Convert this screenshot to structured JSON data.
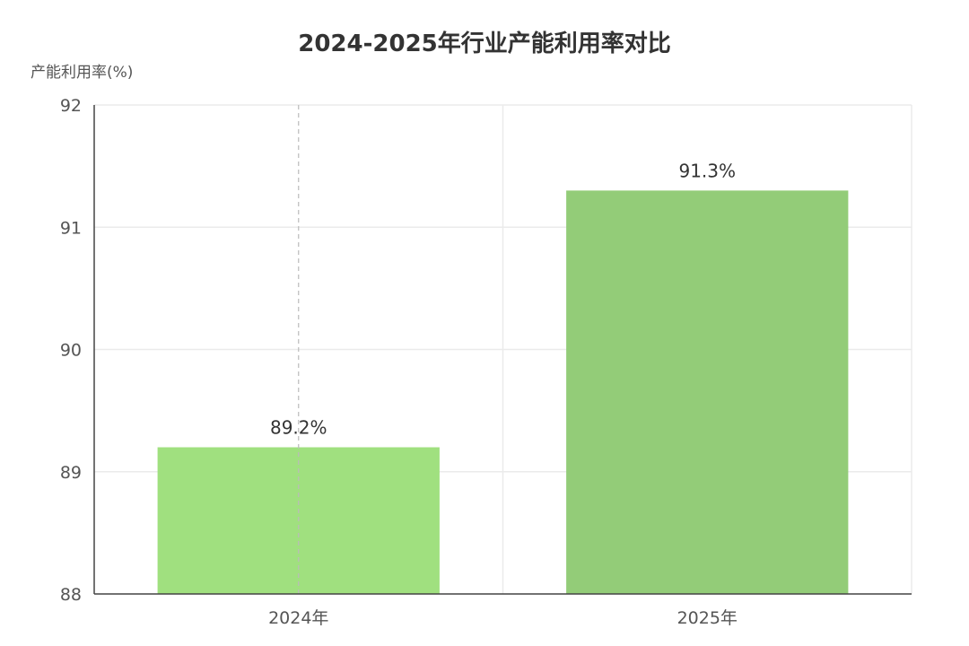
{
  "chart_data": {
    "type": "bar",
    "title": "2024-2025年行业产能利用率对比",
    "ylabel": "产能利用率(%)",
    "xlabel": "",
    "categories": [
      "2024年",
      "2025年"
    ],
    "values": [
      89.2,
      91.3
    ],
    "value_labels": [
      "89.2%",
      "91.3%"
    ],
    "ylim": [
      88,
      92
    ],
    "yticks": [
      88,
      89,
      90,
      91,
      92
    ],
    "grid": true,
    "legend": "none",
    "bar_colors": [
      "#a0e07f",
      "#93cc78"
    ]
  },
  "colors": {
    "axis": "#444444",
    "grid": "#ebebeb",
    "hover_line": "#bbbbbb"
  }
}
